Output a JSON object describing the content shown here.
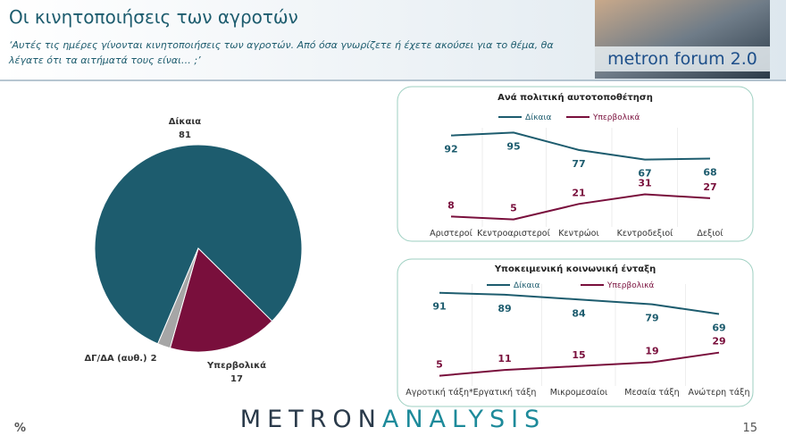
{
  "slide": {
    "title": "Οι κινητοποιήσεις των αγροτών",
    "subtitle_line1": "‘Αυτές τις ημέρες γίνονται κινητοποιήσεις των αγροτών. Από όσα γνωρίζετε ή έχετε ακούσει για το θέμα, θα",
    "subtitle_line2": "λέγατε ότι τα αιτήματά τους είναι… ;’",
    "logo": "metron forum 2.0",
    "unit": "%",
    "brand_part1": "METRON",
    "brand_part2": "ANALYSIS",
    "page_number": "15"
  },
  "chart_data": [
    {
      "type": "pie",
      "categories": [
        "Δίκαια",
        "Υπερβολικά",
        "ΔΓ/ΔΑ (αυθ.)"
      ],
      "values": [
        81,
        17,
        2
      ],
      "colors": [
        "#1d5c6e",
        "#790f3c",
        "#a6a6a6"
      ]
    },
    {
      "type": "line",
      "title": "Ανά πολιτική αυτοτοποθέτηση",
      "categories": [
        "Αριστεροί",
        "Κεντροαριστεροί",
        "Κεντρώοι",
        "Κεντροδεξιοί",
        "Δεξιοί"
      ],
      "ylim": [
        0,
        100
      ],
      "series": [
        {
          "name": "Δίκαια",
          "color": "#1d5c6e",
          "values": [
            92,
            95,
            77,
            67,
            68
          ]
        },
        {
          "name": "Υπερβολικά",
          "color": "#790f3c",
          "values": [
            8,
            5,
            21,
            31,
            27
          ]
        }
      ]
    },
    {
      "type": "line",
      "title": "Υποκειμενική κοινωνική ένταξη",
      "categories": [
        "Αγροτική τάξη*",
        "Εργατική τάξη",
        "Μικρομεσαίοι",
        "Μεσαία τάξη",
        "Ανώτερη τάξη"
      ],
      "ylim": [
        0,
        100
      ],
      "series": [
        {
          "name": "Δίκαια",
          "color": "#1d5c6e",
          "values": [
            91,
            89,
            84,
            79,
            69
          ]
        },
        {
          "name": "Υπερβολικά",
          "color": "#790f3c",
          "values": [
            5,
            11,
            15,
            19,
            29
          ]
        }
      ]
    }
  ]
}
